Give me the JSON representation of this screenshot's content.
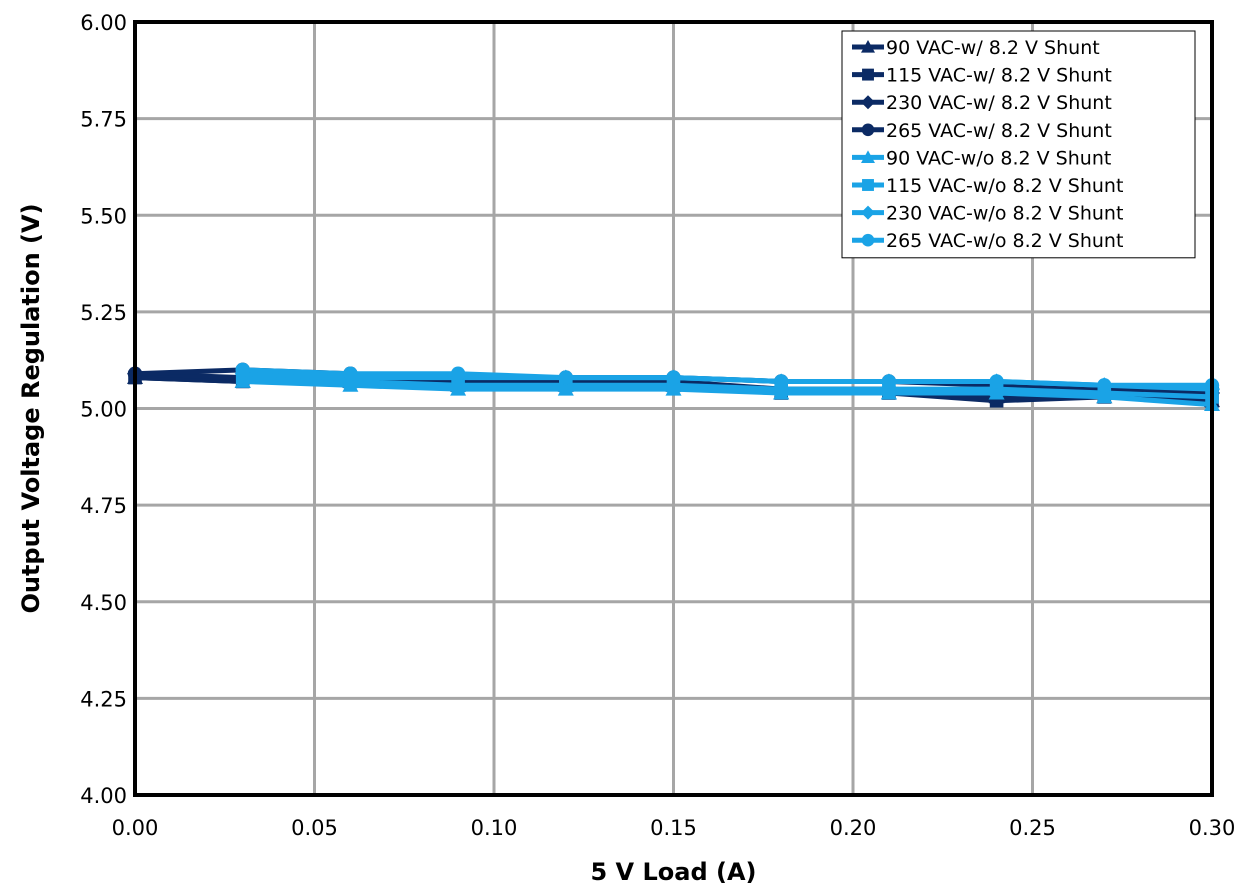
{
  "chart_data": {
    "type": "line",
    "title": "",
    "xlabel": "5 V Load (A)",
    "ylabel": "Output Voltage Regulation (V)",
    "xlim": [
      0,
      0.3
    ],
    "ylim": [
      4.0,
      6.0
    ],
    "xticks": [
      "0.00",
      "0.05",
      "0.10",
      "0.15",
      "0.20",
      "0.25",
      "0.30"
    ],
    "yticks": [
      "4.00",
      "4.25",
      "4.50",
      "4.75",
      "5.00",
      "5.25",
      "5.50",
      "5.75",
      "6.00"
    ],
    "grid": true,
    "legend_position": "top-right",
    "x": [
      0.0,
      0.03,
      0.06,
      0.09,
      0.12,
      0.15,
      0.18,
      0.21,
      0.24,
      0.27,
      0.3
    ],
    "series": [
      {
        "name": "90 VAC-w/ 8.2 V Shunt",
        "color": "#0b2a64",
        "marker": "triangle",
        "values": [
          5.08,
          5.07,
          5.07,
          5.06,
          5.06,
          5.06,
          5.04,
          5.04,
          5.03,
          5.03,
          5.02
        ]
      },
      {
        "name": "115 VAC-w/ 8.2 V Shunt",
        "color": "#0b2a64",
        "marker": "square",
        "values": [
          5.08,
          5.07,
          5.07,
          5.06,
          5.06,
          5.06,
          5.04,
          5.04,
          5.02,
          5.03,
          5.02
        ]
      },
      {
        "name": "230 VAC-w/ 8.2 V Shunt",
        "color": "#0b2a64",
        "marker": "diamond",
        "values": [
          5.09,
          5.08,
          5.08,
          5.07,
          5.07,
          5.07,
          5.05,
          5.05,
          5.04,
          5.04,
          5.04
        ]
      },
      {
        "name": "265 VAC-w/ 8.2 V Shunt",
        "color": "#0b2a64",
        "marker": "circle",
        "values": [
          5.09,
          5.1,
          5.09,
          5.08,
          5.08,
          5.08,
          5.07,
          5.07,
          5.06,
          5.05,
          5.05
        ]
      },
      {
        "name": "90 VAC-w/o 8.2 V Shunt",
        "color": "#1aa3e6",
        "marker": "triangle",
        "values": [
          null,
          5.07,
          5.06,
          5.05,
          5.05,
          5.05,
          5.04,
          5.04,
          5.04,
          5.03,
          5.01
        ]
      },
      {
        "name": "115 VAC-w/o 8.2 V Shunt",
        "color": "#1aa3e6",
        "marker": "square",
        "values": [
          null,
          5.08,
          5.07,
          5.06,
          5.06,
          5.06,
          5.05,
          5.05,
          5.05,
          5.04,
          5.03
        ]
      },
      {
        "name": "230 VAC-w/o 8.2 V Shunt",
        "color": "#1aa3e6",
        "marker": "diamond",
        "values": [
          null,
          5.09,
          5.08,
          5.08,
          5.08,
          5.08,
          5.07,
          5.07,
          5.07,
          5.06,
          5.05
        ]
      },
      {
        "name": "265 VAC-w/o 8.2 V Shunt",
        "color": "#1aa3e6",
        "marker": "circle",
        "values": [
          null,
          5.1,
          5.09,
          5.09,
          5.08,
          5.08,
          5.07,
          5.07,
          5.07,
          5.06,
          5.06
        ]
      }
    ]
  }
}
